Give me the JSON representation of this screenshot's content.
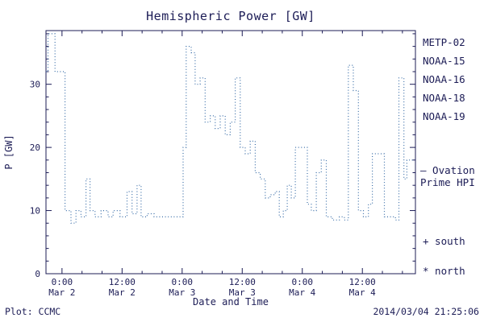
{
  "chart_data": {
    "type": "line",
    "title": "Hemispheric Power [GW]",
    "xlabel": "Date and Time",
    "ylabel": "P [GW]",
    "x_unit": "hours_from_Mar2_00:00",
    "x_range_hours": [
      -3.2,
      70.6
    ],
    "y_range": [
      0,
      38.5
    ],
    "y_ticks": [
      0,
      10,
      20,
      30
    ],
    "y_minor_step": 2,
    "x_minor_step": 4,
    "grid": false,
    "legend_position": "right-outside",
    "x_ticks": [
      {
        "t": 0,
        "time": "0:00",
        "date": "Mar 2"
      },
      {
        "t": 12,
        "time": "12:00",
        "date": "Mar 2"
      },
      {
        "t": 24,
        "time": "0:00",
        "date": "Mar 3"
      },
      {
        "t": 36,
        "time": "12:00",
        "date": "Mar 3"
      },
      {
        "t": 48,
        "time": "0:00",
        "date": "Mar 4"
      },
      {
        "t": 60,
        "time": "12:00",
        "date": "Mar 4"
      }
    ],
    "colors": {
      "frame": "#1c1c56",
      "text": "#1c1c56",
      "line": "#3a6ea8"
    },
    "series": [
      {
        "name": "Ovation Prime HPI",
        "style": "dotted-step",
        "points": [
          [
            -3.2,
            32
          ],
          [
            -2.8,
            38
          ],
          [
            -1.4,
            32
          ],
          [
            0.6,
            10
          ],
          [
            1.8,
            8
          ],
          [
            2.8,
            10
          ],
          [
            3.8,
            9
          ],
          [
            4.8,
            15
          ],
          [
            5.6,
            10
          ],
          [
            6.6,
            9
          ],
          [
            7.8,
            10
          ],
          [
            9.2,
            9
          ],
          [
            10.2,
            10
          ],
          [
            11.6,
            9
          ],
          [
            13.0,
            13
          ],
          [
            14.0,
            9.5
          ],
          [
            15.0,
            14
          ],
          [
            15.8,
            9
          ],
          [
            17.0,
            9.5
          ],
          [
            18.4,
            9
          ],
          [
            20.6,
            9
          ],
          [
            22.6,
            9
          ],
          [
            24.2,
            20
          ],
          [
            24.8,
            36
          ],
          [
            25.8,
            35
          ],
          [
            26.6,
            30
          ],
          [
            27.6,
            31
          ],
          [
            28.6,
            24
          ],
          [
            29.6,
            25
          ],
          [
            30.6,
            23
          ],
          [
            31.6,
            25
          ],
          [
            32.6,
            22
          ],
          [
            33.6,
            24
          ],
          [
            34.6,
            31
          ],
          [
            35.6,
            20
          ],
          [
            36.6,
            19
          ],
          [
            37.6,
            21
          ],
          [
            38.6,
            16
          ],
          [
            39.6,
            15
          ],
          [
            40.6,
            12
          ],
          [
            41.6,
            12.5
          ],
          [
            42.6,
            13
          ],
          [
            43.4,
            9
          ],
          [
            44.2,
            10
          ],
          [
            45.0,
            14
          ],
          [
            45.8,
            12
          ],
          [
            46.6,
            20
          ],
          [
            48.2,
            20
          ],
          [
            49.0,
            11
          ],
          [
            49.8,
            10
          ],
          [
            50.8,
            16
          ],
          [
            51.8,
            18
          ],
          [
            52.8,
            9
          ],
          [
            54.0,
            8.5
          ],
          [
            55.4,
            9
          ],
          [
            56.4,
            8.5
          ],
          [
            57.2,
            33
          ],
          [
            58.2,
            29
          ],
          [
            59.2,
            10
          ],
          [
            60.2,
            9
          ],
          [
            61.2,
            11
          ],
          [
            62.0,
            19
          ],
          [
            63.4,
            19
          ],
          [
            64.4,
            9
          ],
          [
            65.6,
            9
          ],
          [
            66.6,
            8.5
          ],
          [
            67.3,
            31
          ],
          [
            68.3,
            15
          ],
          [
            68.9,
            18
          ],
          [
            70.5,
            18
          ]
        ]
      }
    ],
    "legend_satellites": [
      {
        "label": "METP-02",
        "color": "#16163e"
      },
      {
        "label": "NOAA-15",
        "color": "#2828c8"
      },
      {
        "label": "NOAA-16",
        "color": "#2fb7d7"
      },
      {
        "label": "NOAA-18",
        "color": "#77d877"
      },
      {
        "label": "NOAA-19",
        "color": "#e8a23c"
      }
    ],
    "right_labels": {
      "ovation_line1": "— Ovation",
      "ovation_line2": "Prime HPI",
      "ovation_color": "#3565c8",
      "south": "+ south",
      "north": "* north"
    },
    "footer": {
      "left": "Plot: CCMC",
      "right": "2014/03/04 21:25:06"
    }
  }
}
